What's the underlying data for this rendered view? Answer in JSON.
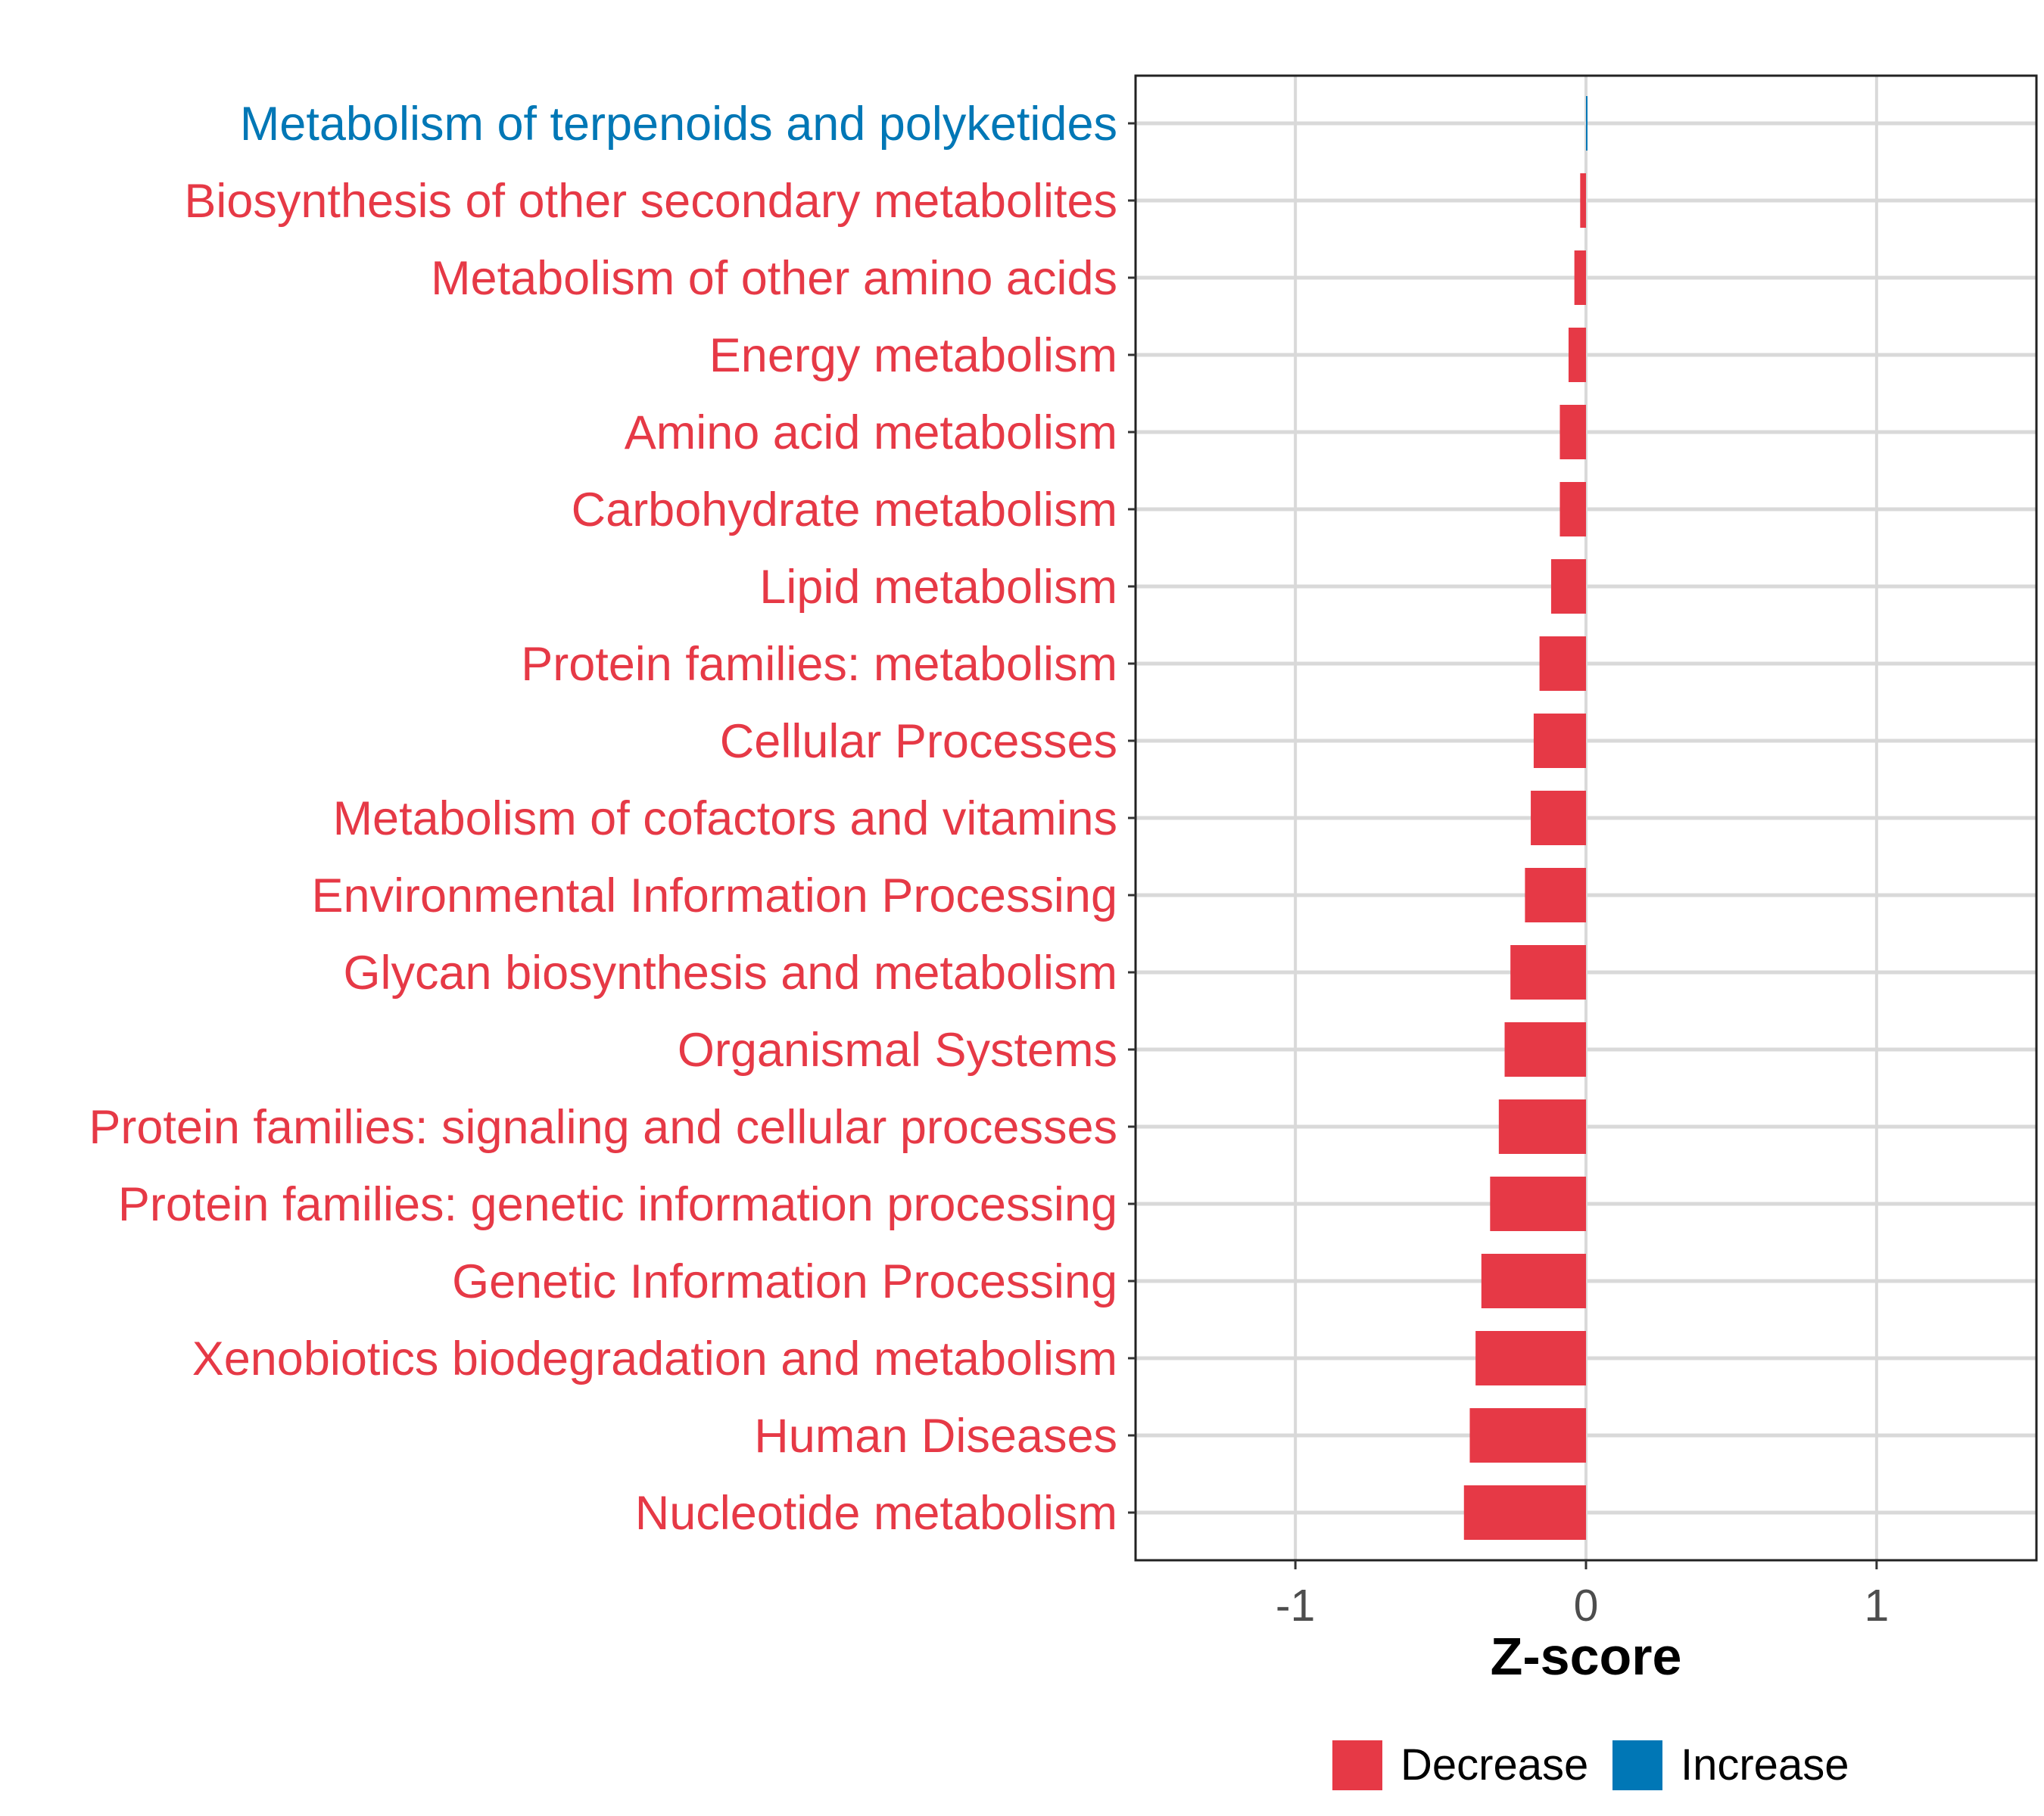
{
  "chart_data": {
    "type": "bar",
    "orientation": "horizontal",
    "xlabel": "Z-score",
    "ylabel": "",
    "xlim": [
      -1.55,
      1.55
    ],
    "xticks": [
      -1,
      0,
      1
    ],
    "xtick_labels": [
      "-1",
      "0",
      "1"
    ],
    "grid": true,
    "legend_position": "bottom",
    "colors": {
      "Decrease": "#e63946",
      "Increase": "#0077b6"
    },
    "legend": [
      {
        "label": "Decrease",
        "color": "#e63946"
      },
      {
        "label": "Increase",
        "color": "#0077b6"
      }
    ],
    "categories": [
      "Metabolism of terpenoids and polyketides",
      "Biosynthesis of other secondary metabolites",
      "Metabolism of other amino acids",
      "Energy metabolism",
      "Amino acid metabolism",
      "Carbohydrate metabolism",
      "Lipid metabolism",
      "Protein families: metabolism",
      "Cellular Processes",
      "Metabolism of cofactors and vitamins",
      "Environmental Information Processing",
      "Glycan biosynthesis and metabolism",
      "Organismal Systems",
      "Protein families: signaling and cellular processes",
      "Protein families: genetic information processing",
      "Genetic Information Processing",
      "Xenobiotics biodegradation and metabolism",
      "Human Diseases",
      "Nucleotide metabolism"
    ],
    "values": [
      0.003,
      -0.02,
      -0.04,
      -0.06,
      -0.09,
      -0.09,
      -0.12,
      -0.16,
      -0.18,
      -0.19,
      -0.21,
      -0.26,
      -0.28,
      -0.3,
      -0.33,
      -0.36,
      -0.38,
      -0.4,
      -0.42
    ],
    "direction": [
      "Increase",
      "Decrease",
      "Decrease",
      "Decrease",
      "Decrease",
      "Decrease",
      "Decrease",
      "Decrease",
      "Decrease",
      "Decrease",
      "Decrease",
      "Decrease",
      "Decrease",
      "Decrease",
      "Decrease",
      "Decrease",
      "Decrease",
      "Decrease",
      "Decrease"
    ]
  }
}
